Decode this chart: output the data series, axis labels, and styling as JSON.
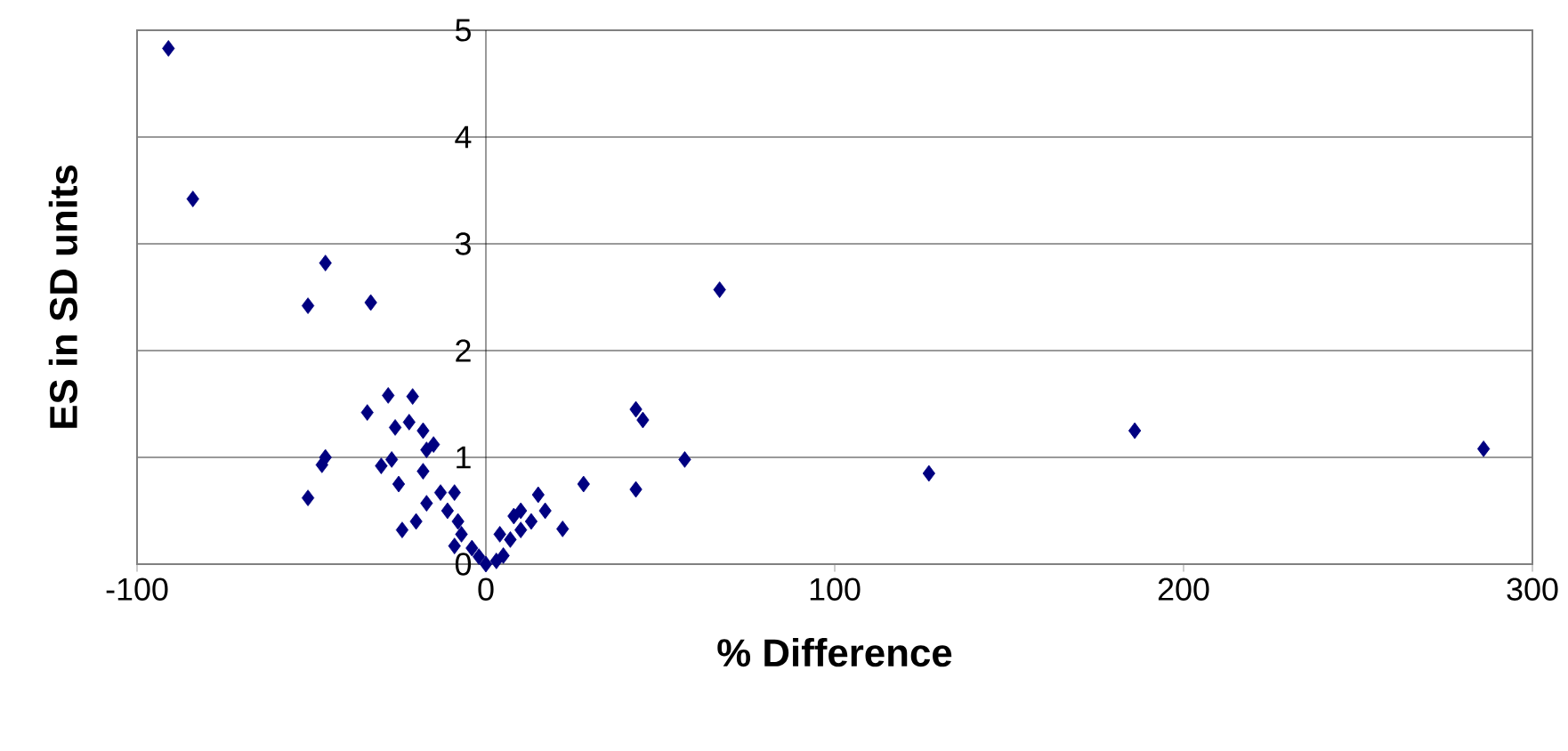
{
  "chart_data": {
    "type": "scatter",
    "xlabel": "% Difference",
    "ylabel": "ES in SD units",
    "xlim": [
      -100,
      300
    ],
    "ylim": [
      0,
      5
    ],
    "xticks": [
      -100,
      0,
      100,
      200,
      300
    ],
    "yticks": [
      0,
      1,
      2,
      3,
      4,
      5
    ],
    "grid": "y",
    "marker": "diamond",
    "series": [
      {
        "color": "#000080",
        "x": [
          -91,
          -84,
          -46,
          -51,
          -33,
          67,
          43,
          45,
          43,
          57,
          127,
          186,
          286,
          -51,
          -47,
          -46,
          28,
          -34,
          -28,
          -21,
          -26,
          -22,
          -18,
          -15,
          -30,
          -27,
          -25,
          -18,
          -24,
          -20,
          -17,
          -13,
          -9,
          -11,
          -8,
          -7,
          -9,
          -4,
          -2,
          0,
          3,
          5,
          7,
          8,
          10,
          13,
          15,
          17,
          22,
          10,
          4,
          -17
        ],
        "values": [
          4.83,
          3.42,
          2.82,
          2.42,
          2.45,
          2.57,
          1.45,
          1.35,
          0.7,
          0.98,
          0.85,
          1.25,
          1.08,
          0.62,
          0.93,
          1.0,
          0.75,
          1.42,
          1.58,
          1.57,
          1.28,
          1.33,
          1.25,
          1.12,
          0.92,
          0.98,
          0.75,
          0.87,
          0.32,
          0.4,
          0.57,
          0.67,
          0.67,
          0.5,
          0.4,
          0.28,
          0.17,
          0.15,
          0.07,
          0.0,
          0.03,
          0.08,
          0.23,
          0.45,
          0.5,
          0.4,
          0.65,
          0.5,
          0.33,
          0.32,
          0.28,
          1.07
        ]
      }
    ]
  }
}
